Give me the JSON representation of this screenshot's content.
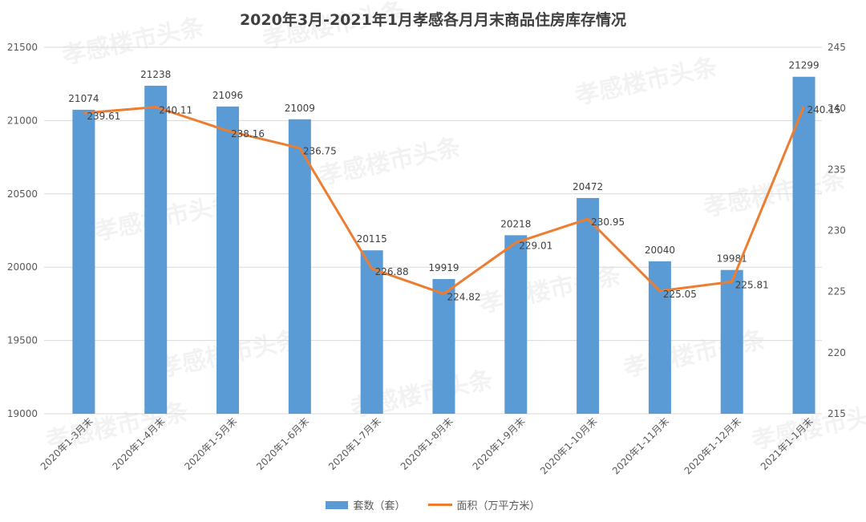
{
  "chart_data": {
    "type": "bar",
    "title": "2020年3月-2021年1月孝感各月月末商品住房库存情况",
    "categories": [
      "2020年1-3月末",
      "2020年1-4月末",
      "2020年1-5月末",
      "2020年1-6月末",
      "2020年1-7月末",
      "2020年1-8月末",
      "2020年1-9月末",
      "2020年1-10月末",
      "2020年1-11月末",
      "2020年1-12月末",
      "2021年1-1月末"
    ],
    "series": [
      {
        "name": "套数（套）",
        "type": "bar",
        "axis": "left",
        "color": "#5b9bd5",
        "values": [
          21074,
          21238,
          21096,
          21009,
          20115,
          19919,
          20218,
          20472,
          20040,
          19981,
          21299
        ],
        "labels": [
          "21074",
          "21238",
          "21096",
          "21009",
          "20115",
          "19919",
          "20218",
          "20472",
          "20040",
          "19981",
          "21299"
        ]
      },
      {
        "name": "面积（万平方米）",
        "type": "line",
        "axis": "right",
        "color": "#ed7d31",
        "values": [
          239.61,
          240.11,
          238.16,
          236.75,
          226.88,
          224.82,
          229.01,
          230.95,
          225.05,
          225.81,
          240.15
        ],
        "labels": [
          "239.61",
          "240.11",
          "238.16",
          "236.75",
          "226.88",
          "224.82",
          "229.01",
          "230.95",
          "225.05",
          "225.81",
          "240.15"
        ]
      }
    ],
    "y_left": {
      "min": 19000,
      "max": 21500,
      "ticks": [
        "19000",
        "19500",
        "20000",
        "20500",
        "21000",
        "21500"
      ]
    },
    "y_right": {
      "min": 215,
      "max": 245,
      "ticks": [
        "215",
        "220",
        "225",
        "230",
        "235",
        "240",
        "245"
      ]
    },
    "grid": true,
    "legend_position": "bottom",
    "watermark": "孝感楼市头条"
  }
}
